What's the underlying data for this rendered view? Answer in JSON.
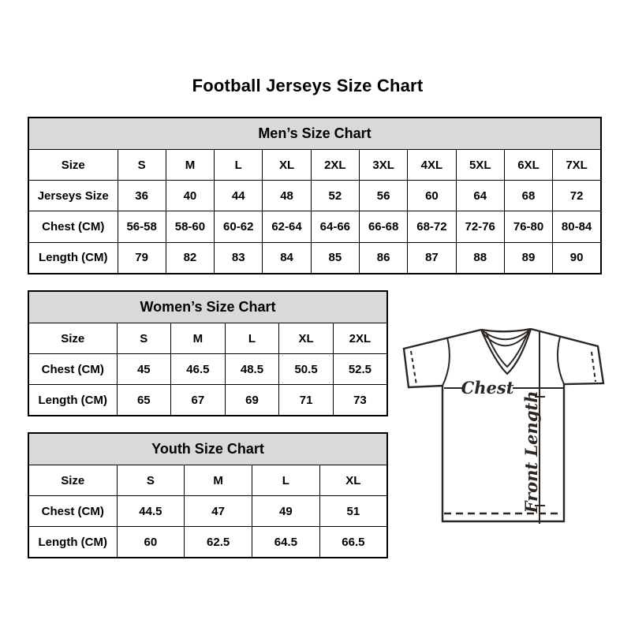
{
  "page": {
    "title": "Football Jerseys Size Chart"
  },
  "tables": {
    "men": {
      "title": "Men’s Size Chart",
      "rows": [
        [
          "Size",
          "S",
          "M",
          "L",
          "XL",
          "2XL",
          "3XL",
          "4XL",
          "5XL",
          "6XL",
          "7XL"
        ],
        [
          "Jerseys Size",
          "36",
          "40",
          "44",
          "48",
          "52",
          "56",
          "60",
          "64",
          "68",
          "72"
        ],
        [
          "Chest (CM)",
          "56-58",
          "58-60",
          "60-62",
          "62-64",
          "64-66",
          "66-68",
          "68-72",
          "72-76",
          "76-80",
          "80-84"
        ],
        [
          "Length (CM)",
          "79",
          "82",
          "83",
          "84",
          "85",
          "86",
          "87",
          "88",
          "89",
          "90"
        ]
      ]
    },
    "women": {
      "title": "Women’s Size Chart",
      "rows": [
        [
          "Size",
          "S",
          "M",
          "L",
          "XL",
          "2XL"
        ],
        [
          "Chest (CM)",
          "45",
          "46.5",
          "48.5",
          "50.5",
          "52.5"
        ],
        [
          "Length (CM)",
          "65",
          "67",
          "69",
          "71",
          "73"
        ]
      ]
    },
    "youth": {
      "title": "Youth Size Chart",
      "rows": [
        [
          "Size",
          "S",
          "M",
          "L",
          "XL"
        ],
        [
          "Chest (CM)",
          "44.5",
          "47",
          "49",
          "51"
        ],
        [
          "Length (CM)",
          "60",
          "62.5",
          "64.5",
          "66.5"
        ]
      ]
    }
  },
  "diagram": {
    "chest_label": "Chest",
    "front_length_label": "Front Length"
  },
  "colors": {
    "header_bg": "#d9d9d9",
    "table_border": "#000000",
    "drawing_line": "#2b2622"
  }
}
